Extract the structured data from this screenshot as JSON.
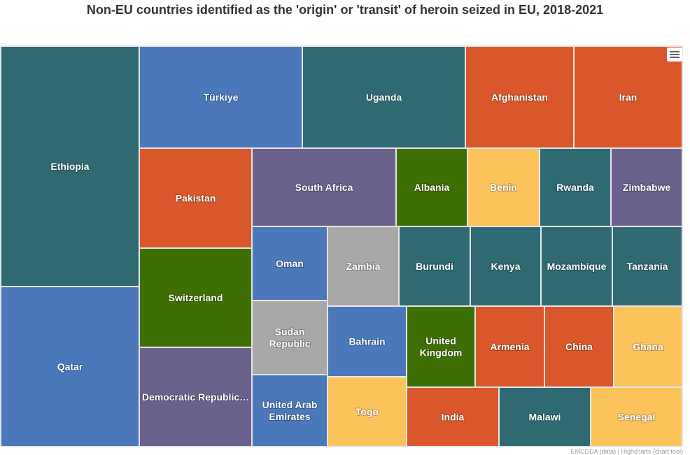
{
  "chart_data": {
    "type": "treemap",
    "title": "Non-EU countries identified as the 'origin' or 'transit' of heroin seized in EU, 2018-2021",
    "credits": "EMCDDA (data) | Highcharts (chart tool)",
    "colors": {
      "teal": "#2f6a72",
      "blue": "#4a78bb",
      "orange": "#d9572b",
      "purple": "#6a618d",
      "green": "#3e6f04",
      "yellow": "#fcc35b",
      "gray": "#a8a8a8"
    },
    "cells": [
      {
        "name": "Ethiopia",
        "color": "teal"
      },
      {
        "name": "Qatar",
        "color": "blue"
      },
      {
        "name": "Türkiye",
        "color": "blue"
      },
      {
        "name": "Uganda",
        "color": "teal"
      },
      {
        "name": "Afghanistan",
        "color": "orange"
      },
      {
        "name": "Iran",
        "color": "orange"
      },
      {
        "name": "Pakistan",
        "color": "orange"
      },
      {
        "name": "South Africa",
        "color": "purple"
      },
      {
        "name": "Albania",
        "color": "green"
      },
      {
        "name": "Benin",
        "color": "yellow"
      },
      {
        "name": "Rwanda",
        "color": "teal"
      },
      {
        "name": "Zimbabwe",
        "color": "purple"
      },
      {
        "name": "Switzerland",
        "color": "green"
      },
      {
        "name": "Oman",
        "color": "blue"
      },
      {
        "name": "Zambia",
        "color": "gray"
      },
      {
        "name": "Burundi",
        "color": "teal"
      },
      {
        "name": "Kenya",
        "color": "teal"
      },
      {
        "name": "Mozambique",
        "color": "teal"
      },
      {
        "name": "Tanzania",
        "color": "teal"
      },
      {
        "name": "Sudan Republic",
        "color": "gray"
      },
      {
        "name": "Bahrain",
        "color": "blue"
      },
      {
        "name": "United Kingdom",
        "color": "green"
      },
      {
        "name": "Armenia",
        "color": "orange"
      },
      {
        "name": "China",
        "color": "orange"
      },
      {
        "name": "Ghana",
        "color": "yellow"
      },
      {
        "name": "Democratic Republic…",
        "color": "purple"
      },
      {
        "name": "United Arab Emirates",
        "color": "blue"
      },
      {
        "name": "Togo",
        "color": "yellow"
      },
      {
        "name": "India",
        "color": "orange"
      },
      {
        "name": "Malawi",
        "color": "teal"
      },
      {
        "name": "Senegal",
        "color": "yellow"
      }
    ]
  }
}
